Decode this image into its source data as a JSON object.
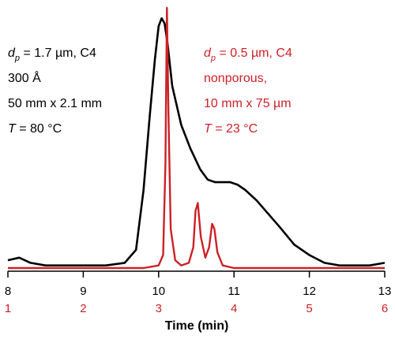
{
  "colors": {
    "black_trace": "#000000",
    "red_trace": "#cc2127",
    "axis": "#000000"
  },
  "chart_data": {
    "type": "line",
    "xlabel": "Time (min)",
    "xlim": [
      8,
      13
    ],
    "x_ticks_top": [
      "8",
      "9",
      "10",
      "11",
      "12",
      "13"
    ],
    "x_ticks_bottom": [
      "1",
      "2",
      "3",
      "4",
      "5",
      "6"
    ],
    "grid": false,
    "series": [
      {
        "name": "",
        "color": "#000000",
        "annotation": [
          "d_p = 1.7 µm, C4",
          "300 Å",
          "50 mm x 2.1 mm",
          "T = 80 °C"
        ],
        "annotation_parts": {
          "line1": {
            "sym": "d",
            "sub": "p",
            "rest": " = 1.7 µm, C4"
          },
          "line2": "300 Å",
          "line3": "50 mm x 2.1 mm",
          "line4": {
            "sym": "T",
            "rest": " = 80 °C"
          }
        },
        "x": [
          8.0,
          8.15,
          8.3,
          8.5,
          8.7,
          9.0,
          9.3,
          9.55,
          9.7,
          9.8,
          9.88,
          9.95,
          10.0,
          10.04,
          10.08,
          10.12,
          10.18,
          10.3,
          10.42,
          10.55,
          10.65,
          10.75,
          10.85,
          10.95,
          11.05,
          11.15,
          11.3,
          11.45,
          11.6,
          11.8,
          12.0,
          12.2,
          12.4,
          12.6,
          12.8,
          13.0
        ],
        "y": [
          0.03,
          0.04,
          0.02,
          0.01,
          0.01,
          0.01,
          0.01,
          0.02,
          0.07,
          0.3,
          0.58,
          0.8,
          0.93,
          0.96,
          0.94,
          0.86,
          0.7,
          0.55,
          0.46,
          0.38,
          0.34,
          0.33,
          0.33,
          0.33,
          0.32,
          0.3,
          0.26,
          0.21,
          0.16,
          0.09,
          0.05,
          0.02,
          0.01,
          0.01,
          0.01,
          0.02
        ]
      },
      {
        "name": "",
        "color": "#cc2127",
        "annotation": [
          "d_p = 0.5 µm, C4",
          "nonporous,",
          "10 mm x 75 µm",
          "T = 23 °C"
        ],
        "annotation_parts": {
          "line1": {
            "sym": "d",
            "sub": "p",
            "rest": " = 0.5 µm, C4"
          },
          "line2": "nonporous,",
          "line3": "10 mm x 75 µm",
          "line4": {
            "sym": "T",
            "rest": " = 23 °C"
          }
        },
        "x": [
          8.0,
          9.0,
          9.8,
          10.0,
          10.06,
          10.09,
          10.11,
          10.13,
          10.16,
          10.22,
          10.3,
          10.4,
          10.46,
          10.49,
          10.52,
          10.56,
          10.62,
          10.67,
          10.71,
          10.74,
          10.78,
          10.85,
          11.0,
          12.0,
          13.0
        ],
        "y": [
          0.0,
          0.0,
          0.0,
          0.01,
          0.05,
          0.4,
          1.0,
          0.6,
          0.15,
          0.03,
          0.01,
          0.02,
          0.08,
          0.22,
          0.25,
          0.12,
          0.04,
          0.08,
          0.17,
          0.15,
          0.06,
          0.01,
          0.0,
          0.0,
          0.0
        ]
      }
    ]
  }
}
